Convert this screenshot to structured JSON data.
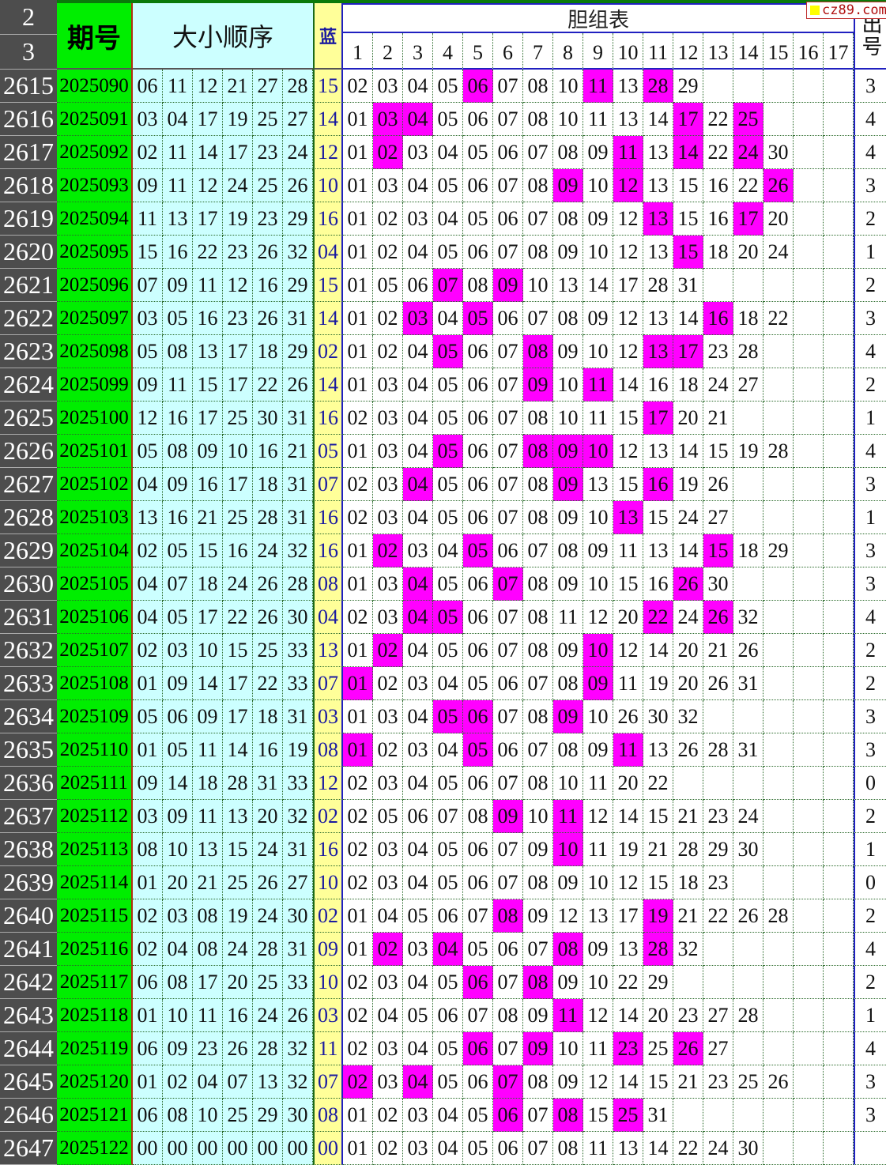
{
  "header": {
    "row_a": "2",
    "row_b": "3",
    "period_label": "期号",
    "order_label": "大小顺序",
    "blue_label": "蓝",
    "dan_title": "胆组表",
    "dan_cols": [
      "1",
      "2",
      "3",
      "4",
      "5",
      "6",
      "7",
      "8",
      "9",
      "10",
      "11",
      "12",
      "13",
      "14",
      "15",
      "16",
      "17"
    ],
    "count_label": "出号"
  },
  "watermark": "cz89.com",
  "colors": {
    "highlight": "#ff00ff",
    "period_bg": "#00ee00",
    "red_bg": "#ccffff",
    "blue_bg": "#ffff99",
    "rownum_bg": "#4d4d4d"
  },
  "rows": [
    {
      "n": "2615",
      "period": "2025090",
      "reds": [
        "06",
        "11",
        "12",
        "21",
        "27",
        "28"
      ],
      "blue": "15",
      "dan": [
        "02",
        "03",
        "04",
        "05",
        "06",
        "07",
        "08",
        "10",
        "11",
        "13",
        "28",
        "29"
      ],
      "count": "3"
    },
    {
      "n": "2616",
      "period": "2025091",
      "reds": [
        "03",
        "04",
        "17",
        "19",
        "25",
        "27"
      ],
      "blue": "14",
      "dan": [
        "01",
        "03",
        "04",
        "05",
        "06",
        "07",
        "08",
        "10",
        "11",
        "13",
        "14",
        "17",
        "22",
        "25"
      ],
      "count": "4"
    },
    {
      "n": "2617",
      "period": "2025092",
      "reds": [
        "02",
        "11",
        "14",
        "17",
        "23",
        "24"
      ],
      "blue": "12",
      "dan": [
        "01",
        "02",
        "03",
        "04",
        "05",
        "06",
        "07",
        "08",
        "09",
        "11",
        "13",
        "14",
        "22",
        "24",
        "30"
      ],
      "count": "4"
    },
    {
      "n": "2618",
      "period": "2025093",
      "reds": [
        "09",
        "11",
        "12",
        "24",
        "25",
        "26"
      ],
      "blue": "10",
      "dan": [
        "01",
        "03",
        "04",
        "05",
        "06",
        "07",
        "08",
        "09",
        "10",
        "12",
        "13",
        "15",
        "16",
        "22",
        "26"
      ],
      "count": "3"
    },
    {
      "n": "2619",
      "period": "2025094",
      "reds": [
        "11",
        "13",
        "17",
        "19",
        "23",
        "29"
      ],
      "blue": "16",
      "dan": [
        "01",
        "02",
        "03",
        "04",
        "05",
        "06",
        "07",
        "08",
        "09",
        "12",
        "13",
        "15",
        "16",
        "17",
        "20"
      ],
      "count": "2"
    },
    {
      "n": "2620",
      "period": "2025095",
      "reds": [
        "15",
        "16",
        "22",
        "23",
        "26",
        "32"
      ],
      "blue": "04",
      "dan": [
        "01",
        "02",
        "04",
        "05",
        "06",
        "07",
        "08",
        "09",
        "10",
        "12",
        "13",
        "15",
        "18",
        "20",
        "24"
      ],
      "count": "1"
    },
    {
      "n": "2621",
      "period": "2025096",
      "reds": [
        "07",
        "09",
        "11",
        "12",
        "16",
        "29"
      ],
      "blue": "15",
      "dan": [
        "01",
        "05",
        "06",
        "07",
        "08",
        "09",
        "10",
        "13",
        "14",
        "17",
        "28",
        "31"
      ],
      "count": "2"
    },
    {
      "n": "2622",
      "period": "2025097",
      "reds": [
        "03",
        "05",
        "16",
        "23",
        "26",
        "31"
      ],
      "blue": "14",
      "dan": [
        "01",
        "02",
        "03",
        "04",
        "05",
        "06",
        "07",
        "08",
        "09",
        "12",
        "13",
        "14",
        "16",
        "18",
        "22"
      ],
      "count": "3"
    },
    {
      "n": "2623",
      "period": "2025098",
      "reds": [
        "05",
        "08",
        "13",
        "17",
        "18",
        "29"
      ],
      "blue": "02",
      "dan": [
        "01",
        "02",
        "04",
        "05",
        "06",
        "07",
        "08",
        "09",
        "10",
        "12",
        "13",
        "17",
        "23",
        "28"
      ],
      "count": "4"
    },
    {
      "n": "2624",
      "period": "2025099",
      "reds": [
        "09",
        "11",
        "15",
        "17",
        "22",
        "26"
      ],
      "blue": "14",
      "dan": [
        "01",
        "03",
        "04",
        "05",
        "06",
        "07",
        "09",
        "10",
        "11",
        "14",
        "16",
        "18",
        "24",
        "27"
      ],
      "count": "2"
    },
    {
      "n": "2625",
      "period": "2025100",
      "reds": [
        "12",
        "16",
        "17",
        "25",
        "30",
        "31"
      ],
      "blue": "16",
      "dan": [
        "02",
        "03",
        "04",
        "05",
        "06",
        "07",
        "08",
        "10",
        "11",
        "15",
        "17",
        "20",
        "21"
      ],
      "count": "1"
    },
    {
      "n": "2626",
      "period": "2025101",
      "reds": [
        "05",
        "08",
        "09",
        "10",
        "16",
        "21"
      ],
      "blue": "05",
      "dan": [
        "01",
        "03",
        "04",
        "05",
        "06",
        "07",
        "08",
        "09",
        "10",
        "12",
        "13",
        "14",
        "15",
        "19",
        "28"
      ],
      "count": "4"
    },
    {
      "n": "2627",
      "period": "2025102",
      "reds": [
        "04",
        "09",
        "16",
        "17",
        "18",
        "31"
      ],
      "blue": "07",
      "dan": [
        "02",
        "03",
        "04",
        "05",
        "06",
        "07",
        "08",
        "09",
        "13",
        "15",
        "16",
        "19",
        "26"
      ],
      "count": "3"
    },
    {
      "n": "2628",
      "period": "2025103",
      "reds": [
        "13",
        "16",
        "21",
        "25",
        "28",
        "31"
      ],
      "blue": "16",
      "dan": [
        "02",
        "03",
        "04",
        "05",
        "06",
        "07",
        "08",
        "09",
        "10",
        "13",
        "15",
        "24",
        "27"
      ],
      "count": "1"
    },
    {
      "n": "2629",
      "period": "2025104",
      "reds": [
        "02",
        "05",
        "15",
        "16",
        "24",
        "32"
      ],
      "blue": "16",
      "dan": [
        "01",
        "02",
        "03",
        "04",
        "05",
        "06",
        "07",
        "08",
        "09",
        "11",
        "13",
        "14",
        "15",
        "18",
        "29"
      ],
      "count": "3"
    },
    {
      "n": "2630",
      "period": "2025105",
      "reds": [
        "04",
        "07",
        "18",
        "24",
        "26",
        "28"
      ],
      "blue": "08",
      "dan": [
        "01",
        "03",
        "04",
        "05",
        "06",
        "07",
        "08",
        "09",
        "10",
        "15",
        "16",
        "26",
        "30"
      ],
      "count": "3"
    },
    {
      "n": "2631",
      "period": "2025106",
      "reds": [
        "04",
        "05",
        "17",
        "22",
        "26",
        "30"
      ],
      "blue": "04",
      "dan": [
        "02",
        "03",
        "04",
        "05",
        "06",
        "07",
        "08",
        "11",
        "12",
        "20",
        "22",
        "24",
        "26",
        "32"
      ],
      "count": "4"
    },
    {
      "n": "2632",
      "period": "2025107",
      "reds": [
        "02",
        "03",
        "10",
        "15",
        "25",
        "33"
      ],
      "blue": "13",
      "dan": [
        "01",
        "02",
        "04",
        "05",
        "06",
        "07",
        "08",
        "09",
        "10",
        "12",
        "14",
        "20",
        "21",
        "26"
      ],
      "count": "2"
    },
    {
      "n": "2633",
      "period": "2025108",
      "reds": [
        "01",
        "09",
        "14",
        "17",
        "22",
        "33"
      ],
      "blue": "07",
      "dan": [
        "01",
        "02",
        "03",
        "04",
        "05",
        "06",
        "07",
        "08",
        "09",
        "11",
        "19",
        "20",
        "26",
        "31"
      ],
      "count": "2"
    },
    {
      "n": "2634",
      "period": "2025109",
      "reds": [
        "05",
        "06",
        "09",
        "17",
        "18",
        "31"
      ],
      "blue": "03",
      "dan": [
        "01",
        "03",
        "04",
        "05",
        "06",
        "07",
        "08",
        "09",
        "10",
        "26",
        "30",
        "32"
      ],
      "count": "3"
    },
    {
      "n": "2635",
      "period": "2025110",
      "reds": [
        "01",
        "05",
        "11",
        "14",
        "16",
        "19"
      ],
      "blue": "08",
      "dan": [
        "01",
        "02",
        "03",
        "04",
        "05",
        "06",
        "07",
        "08",
        "09",
        "11",
        "13",
        "26",
        "28",
        "31"
      ],
      "count": "3"
    },
    {
      "n": "2636",
      "period": "2025111",
      "reds": [
        "09",
        "14",
        "18",
        "28",
        "31",
        "33"
      ],
      "blue": "12",
      "dan": [
        "02",
        "03",
        "04",
        "05",
        "06",
        "07",
        "08",
        "10",
        "11",
        "20",
        "22"
      ],
      "count": "0"
    },
    {
      "n": "2637",
      "period": "2025112",
      "reds": [
        "03",
        "09",
        "11",
        "13",
        "20",
        "32"
      ],
      "blue": "02",
      "dan": [
        "02",
        "05",
        "06",
        "07",
        "08",
        "09",
        "10",
        "11",
        "12",
        "14",
        "15",
        "21",
        "23",
        "24"
      ],
      "count": "2"
    },
    {
      "n": "2638",
      "period": "2025113",
      "reds": [
        "08",
        "10",
        "13",
        "15",
        "24",
        "31"
      ],
      "blue": "16",
      "dan": [
        "02",
        "03",
        "04",
        "05",
        "06",
        "07",
        "09",
        "10",
        "11",
        "19",
        "21",
        "28",
        "29",
        "30"
      ],
      "count": "1"
    },
    {
      "n": "2639",
      "period": "2025114",
      "reds": [
        "01",
        "20",
        "21",
        "25",
        "26",
        "27"
      ],
      "blue": "10",
      "dan": [
        "02",
        "03",
        "04",
        "05",
        "06",
        "07",
        "08",
        "09",
        "10",
        "12",
        "15",
        "18",
        "23"
      ],
      "count": "0"
    },
    {
      "n": "2640",
      "period": "2025115",
      "reds": [
        "02",
        "03",
        "08",
        "19",
        "24",
        "30"
      ],
      "blue": "02",
      "dan": [
        "01",
        "04",
        "05",
        "06",
        "07",
        "08",
        "09",
        "12",
        "13",
        "17",
        "19",
        "21",
        "22",
        "26",
        "28"
      ],
      "count": "2"
    },
    {
      "n": "2641",
      "period": "2025116",
      "reds": [
        "02",
        "04",
        "08",
        "24",
        "28",
        "31"
      ],
      "blue": "09",
      "dan": [
        "01",
        "02",
        "03",
        "04",
        "05",
        "06",
        "07",
        "08",
        "09",
        "13",
        "28",
        "32"
      ],
      "count": "4"
    },
    {
      "n": "2642",
      "period": "2025117",
      "reds": [
        "06",
        "08",
        "17",
        "20",
        "25",
        "33"
      ],
      "blue": "10",
      "dan": [
        "02",
        "03",
        "04",
        "05",
        "06",
        "07",
        "08",
        "09",
        "10",
        "22",
        "29"
      ],
      "count": "2"
    },
    {
      "n": "2643",
      "period": "2025118",
      "reds": [
        "01",
        "10",
        "11",
        "16",
        "24",
        "26"
      ],
      "blue": "03",
      "dan": [
        "02",
        "04",
        "05",
        "06",
        "07",
        "08",
        "09",
        "11",
        "12",
        "14",
        "20",
        "23",
        "27",
        "28"
      ],
      "count": "1"
    },
    {
      "n": "2644",
      "period": "2025119",
      "reds": [
        "06",
        "09",
        "23",
        "26",
        "28",
        "32"
      ],
      "blue": "11",
      "dan": [
        "02",
        "03",
        "04",
        "05",
        "06",
        "07",
        "09",
        "10",
        "11",
        "23",
        "25",
        "26",
        "27"
      ],
      "count": "4"
    },
    {
      "n": "2645",
      "period": "2025120",
      "reds": [
        "01",
        "02",
        "04",
        "07",
        "13",
        "32"
      ],
      "blue": "07",
      "dan": [
        "02",
        "03",
        "04",
        "05",
        "06",
        "07",
        "08",
        "09",
        "12",
        "14",
        "15",
        "21",
        "23",
        "25",
        "26"
      ],
      "count": "3"
    },
    {
      "n": "2646",
      "period": "2025121",
      "reds": [
        "06",
        "08",
        "10",
        "25",
        "29",
        "30"
      ],
      "blue": "08",
      "dan": [
        "01",
        "02",
        "03",
        "04",
        "05",
        "06",
        "07",
        "08",
        "15",
        "25",
        "31"
      ],
      "count": "3"
    },
    {
      "n": "2647",
      "period": "2025122",
      "reds": [
        "00",
        "00",
        "00",
        "00",
        "00",
        "00"
      ],
      "blue": "00",
      "dan": [
        "01",
        "02",
        "03",
        "04",
        "05",
        "06",
        "07",
        "08",
        "11",
        "13",
        "14",
        "22",
        "24",
        "30"
      ],
      "count": ""
    }
  ]
}
